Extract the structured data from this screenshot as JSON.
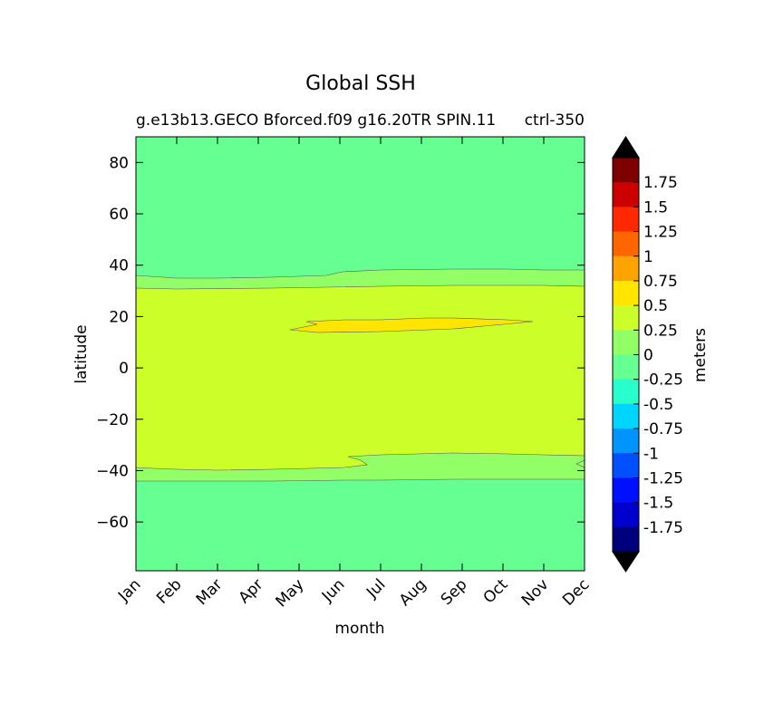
{
  "chart_data": {
    "type": "contourf",
    "title": "Global SSH",
    "subtitle_left": "g.e13b13.GECO Bforced.f09 g16.20TR SPIN.11",
    "subtitle_right": "ctrl-350",
    "xlabel": "month",
    "ylabel": "latitude",
    "x_tick_labels": [
      "Jan",
      "Feb",
      "Mar",
      "Apr",
      "May",
      "Jun",
      "Jul",
      "Aug",
      "Sep",
      "Oct",
      "Nov",
      "Dec"
    ],
    "xlim": [
      1,
      12
    ],
    "ylim": [
      -79,
      90
    ],
    "y_ticks": [
      80,
      60,
      40,
      20,
      0,
      -20,
      -40,
      -60
    ],
    "y_tick_labels": [
      "80",
      "60",
      "40",
      "20",
      "0",
      "−20",
      "−40",
      "−60"
    ],
    "contour_levels": [
      -1.75,
      -1.5,
      -1.25,
      -1,
      -0.75,
      -0.5,
      -0.25,
      0,
      0.25,
      0.5,
      0.75,
      1,
      1.25,
      1.5,
      1.75
    ],
    "regions": [
      {
        "level_range": [
          -0.25,
          0
        ],
        "color": "#66ff92",
        "description": "high latitudes north of ~36N and south of ~-43S"
      },
      {
        "level_range": [
          0,
          0.25
        ],
        "color": "#92ff66",
        "description": "transition bands near 32-38N and 33-43S"
      },
      {
        "level_range": [
          0.25,
          0.5
        ],
        "color": "#ccff29",
        "description": "tropics and subtropics"
      },
      {
        "level_range": [
          0.5,
          0.75
        ],
        "color": "#ffe500",
        "description": "band near 15-20N from May to Nov"
      }
    ],
    "colorbar": {
      "label": "meters",
      "tick_labels": [
        "1.75",
        "1.5",
        "1.25",
        "1",
        "0.75",
        "0.5",
        "0.25",
        "0",
        "-0.25",
        "-0.5",
        "-0.75",
        "-1",
        "-1.25",
        "-1.5",
        "-1.75"
      ],
      "colors_top_to_bottom": [
        "#7f0000",
        "#cc0000",
        "#ff2900",
        "#ff6600",
        "#ffa300",
        "#ffe500",
        "#ccff29",
        "#92ff66",
        "#66ff92",
        "#29ffcc",
        "#00d5ff",
        "#0094ff",
        "#0050ff",
        "#0010ff",
        "#0000cd",
        "#00007f"
      ],
      "extend": "both",
      "extend_colors": {
        "upper": "#000000",
        "lower": "#000000"
      }
    }
  }
}
